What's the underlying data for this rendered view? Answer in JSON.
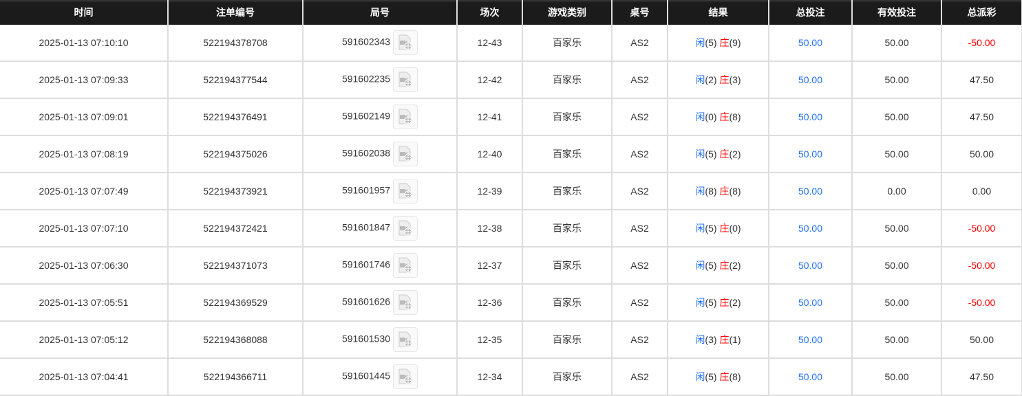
{
  "headers": [
    "时间",
    "注单编号",
    "局号",
    "场次",
    "游戏类别",
    "桌号",
    "结果",
    "总投注",
    "有效投注",
    "总派彩"
  ],
  "player_label": "闲",
  "banker_label": "庄",
  "colors": {
    "header_bg": "#1b1b1b",
    "blue": "#1e6fff",
    "red": "#ff0000"
  },
  "rows": [
    {
      "time": "2025-01-13 07:10:10",
      "bet_id": "522194378708",
      "round": "591602343",
      "shoe": "12-43",
      "game": "百家乐",
      "table": "AS2",
      "p": "(5)",
      "b": "(9)",
      "total": "50.00",
      "valid": "50.00",
      "payout": "-50.00",
      "neg": true
    },
    {
      "time": "2025-01-13 07:09:33",
      "bet_id": "522194377544",
      "round": "591602235",
      "shoe": "12-42",
      "game": "百家乐",
      "table": "AS2",
      "p": "(2)",
      "b": "(3)",
      "total": "50.00",
      "valid": "50.00",
      "payout": "47.50",
      "neg": false
    },
    {
      "time": "2025-01-13 07:09:01",
      "bet_id": "522194376491",
      "round": "591602149",
      "shoe": "12-41",
      "game": "百家乐",
      "table": "AS2",
      "p": "(0)",
      "b": "(8)",
      "total": "50.00",
      "valid": "50.00",
      "payout": "47.50",
      "neg": false
    },
    {
      "time": "2025-01-13 07:08:19",
      "bet_id": "522194375026",
      "round": "591602038",
      "shoe": "12-40",
      "game": "百家乐",
      "table": "AS2",
      "p": "(5)",
      "b": "(2)",
      "total": "50.00",
      "valid": "50.00",
      "payout": "50.00",
      "neg": false
    },
    {
      "time": "2025-01-13 07:07:49",
      "bet_id": "522194373921",
      "round": "591601957",
      "shoe": "12-39",
      "game": "百家乐",
      "table": "AS2",
      "p": "(8)",
      "b": "(8)",
      "total": "50.00",
      "valid": "0.00",
      "payout": "0.00",
      "neg": false
    },
    {
      "time": "2025-01-13 07:07:10",
      "bet_id": "522194372421",
      "round": "591601847",
      "shoe": "12-38",
      "game": "百家乐",
      "table": "AS2",
      "p": "(5)",
      "b": "(0)",
      "total": "50.00",
      "valid": "50.00",
      "payout": "-50.00",
      "neg": true
    },
    {
      "time": "2025-01-13 07:06:30",
      "bet_id": "522194371073",
      "round": "591601746",
      "shoe": "12-37",
      "game": "百家乐",
      "table": "AS2",
      "p": "(5)",
      "b": "(2)",
      "total": "50.00",
      "valid": "50.00",
      "payout": "-50.00",
      "neg": true
    },
    {
      "time": "2025-01-13 07:05:51",
      "bet_id": "522194369529",
      "round": "591601626",
      "shoe": "12-36",
      "game": "百家乐",
      "table": "AS2",
      "p": "(5)",
      "b": "(2)",
      "total": "50.00",
      "valid": "50.00",
      "payout": "-50.00",
      "neg": true
    },
    {
      "time": "2025-01-13 07:05:12",
      "bet_id": "522194368088",
      "round": "591601530",
      "shoe": "12-35",
      "game": "百家乐",
      "table": "AS2",
      "p": "(3)",
      "b": "(1)",
      "total": "50.00",
      "valid": "50.00",
      "payout": "50.00",
      "neg": false
    },
    {
      "time": "2025-01-13 07:04:41",
      "bet_id": "522194366711",
      "round": "591601445",
      "shoe": "12-34",
      "game": "百家乐",
      "table": "AS2",
      "p": "(5)",
      "b": "(8)",
      "total": "50.00",
      "valid": "50.00",
      "payout": "47.50",
      "neg": false
    }
  ]
}
